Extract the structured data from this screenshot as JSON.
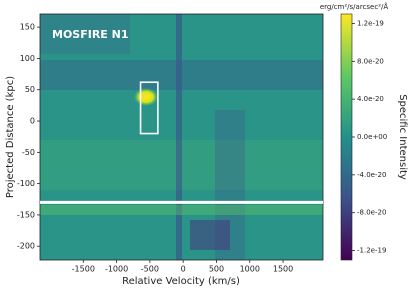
{
  "chart_data": {
    "type": "heatmap",
    "title": "MOSFIRE N1",
    "x_label": "Relative Velocity (km/s)",
    "y_label": "Projected Distance (kpc)",
    "xlim": [
      -2150,
      2100
    ],
    "ylim": [
      -222,
      171
    ],
    "xticks": [
      -1500,
      -1000,
      -500,
      0,
      500,
      1000,
      1500
    ],
    "yticks": [
      -200,
      -150,
      -100,
      -50,
      0,
      50,
      100,
      150
    ],
    "box": {
      "xlim": [
        -640,
        -380
      ],
      "ylim": [
        -20,
        62
      ]
    },
    "hline": -130,
    "colorbar": {
      "label": "Specific Intensity",
      "units": "erg/cm²/s/arcsec²/Å",
      "lim": [
        -1.3e-19,
        1.3e-19
      ],
      "ticks": [
        {
          "value": 1.2e-19,
          "label": "1.2e-19"
        },
        {
          "value": 8e-20,
          "label": "8.0e-20"
        },
        {
          "value": 4e-20,
          "label": "4.0e-20"
        },
        {
          "value": 0,
          "label": "0.0e+00"
        },
        {
          "value": -4e-20,
          "label": "-4.0e-20"
        },
        {
          "value": -8e-20,
          "label": "-8.0e-20"
        },
        {
          "value": -1.2e-19,
          "label": "-1.2e-19"
        }
      ]
    }
  }
}
